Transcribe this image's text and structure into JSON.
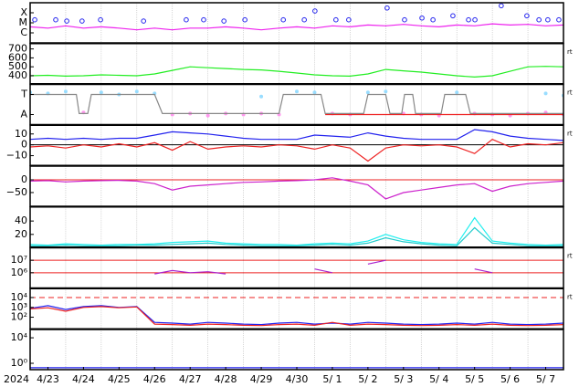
{
  "year_label": "2024",
  "x_axis": {
    "xlim": [
      0,
      15
    ],
    "x": [
      0,
      0.5,
      1,
      1.5,
      2,
      2.5,
      3,
      3.5,
      4,
      4.5,
      5,
      5.5,
      6,
      6.5,
      7,
      7.5,
      8,
      8.5,
      9,
      9.5,
      10,
      10.5,
      11,
      11.5,
      12,
      12.5,
      13,
      13.5,
      14,
      14.5,
      15
    ],
    "xticks": [
      {
        "value": 0.5,
        "label": "4/23"
      },
      {
        "value": 1.5,
        "label": "4/24"
      },
      {
        "value": 2.5,
        "label": "4/25"
      },
      {
        "value": 3.5,
        "label": "4/26"
      },
      {
        "value": 4.5,
        "label": "4/27"
      },
      {
        "value": 5.5,
        "label": "4/28"
      },
      {
        "value": 6.5,
        "label": "4/29"
      },
      {
        "value": 7.5,
        "label": "4/30"
      },
      {
        "value": 8.5,
        "label": "5/ 1"
      },
      {
        "value": 9.5,
        "label": "5/ 2"
      },
      {
        "value": 10.5,
        "label": "5/ 3"
      },
      {
        "value": 11.5,
        "label": "5/ 4"
      },
      {
        "value": 12.5,
        "label": "5/ 5"
      },
      {
        "value": 13.5,
        "label": "5/ 6"
      },
      {
        "value": 14.5,
        "label": "5/ 7"
      }
    ],
    "xgrid": [
      1,
      2,
      3,
      4,
      5,
      6,
      7,
      8,
      9,
      10,
      11,
      12,
      13,
      14
    ]
  },
  "chart_data": [
    {
      "type": "line",
      "log": true,
      "ylim": [
        1e-07,
        0.001
      ],
      "yticks": [
        {
          "value": 0.0001,
          "label": "X"
        },
        {
          "value": 1e-05,
          "label": "M"
        },
        {
          "value": 1e-06,
          "label": "C"
        }
      ],
      "series": [
        {
          "color": "#ee22ee",
          "values": [
            4e-06,
            3e-06,
            5e-06,
            3e-06,
            4e-06,
            3e-06,
            2e-06,
            3e-06,
            2e-06,
            3e-06,
            3e-06,
            4e-06,
            3e-06,
            2e-06,
            3e-06,
            4e-06,
            3e-06,
            5e-06,
            4e-06,
            6e-06,
            5e-06,
            7e-06,
            5e-06,
            4e-06,
            6e-06,
            5e-06,
            8e-06,
            6e-06,
            7e-06,
            5e-06,
            6e-06
          ]
        }
      ],
      "markers": {
        "color": "#2222ee",
        "x": [
          0.13,
          0.72,
          1.03,
          1.46,
          1.98,
          3.19,
          4.39,
          4.88,
          5.45,
          6.04,
          7.12,
          7.71,
          8.01,
          8.6,
          8.96,
          10.04,
          10.53,
          11.02,
          11.33,
          11.89,
          12.33,
          12.51,
          13.25,
          13.97,
          14.31,
          14.56,
          14.87
        ],
        "values": [
          2e-05,
          2e-05,
          1.5e-05,
          1.5e-05,
          2e-05,
          1.5e-05,
          2e-05,
          2e-05,
          1.5e-05,
          2e-05,
          2e-05,
          2e-05,
          0.00015,
          2e-05,
          2e-05,
          0.0003,
          2e-05,
          3e-05,
          2e-05,
          5e-05,
          2e-05,
          2e-05,
          0.0005,
          5e-05,
          2e-05,
          2e-05,
          2e-05
        ]
      }
    },
    {
      "type": "line",
      "ylim": [
        310,
        760
      ],
      "yticks": [
        400,
        500,
        600,
        700
      ],
      "right_label": "rt",
      "series": [
        {
          "color": "#22ee22",
          "values": [
            400,
            405,
            395,
            400,
            410,
            405,
            400,
            420,
            460,
            500,
            490,
            480,
            470,
            465,
            450,
            430,
            410,
            400,
            395,
            420,
            470,
            455,
            440,
            420,
            400,
            385,
            400,
            450,
            500,
            505,
            500
          ]
        }
      ]
    },
    {
      "type": "line",
      "ylim": [
        -2,
        2
      ],
      "yticks": [
        {
          "value": 1,
          "label": "T"
        },
        {
          "value": -1,
          "label": "A"
        }
      ],
      "right_label": "rt",
      "series": [
        {
          "color": "#99ddff",
          "style": "dots",
          "values": [
            1.2,
            1.1,
            1.3,
            null,
            1.2,
            1.0,
            1.3,
            1.1,
            null,
            null,
            null,
            null,
            null,
            0.8,
            null,
            1.3,
            1.2,
            null,
            null,
            1.2,
            1.3,
            null,
            null,
            null,
            1.2,
            null,
            null,
            null,
            null,
            1.1,
            0.9
          ]
        },
        {
          "color": "#ff99ee",
          "style": "dots",
          "values": [
            null,
            null,
            null,
            -0.8,
            null,
            null,
            null,
            null,
            -1.0,
            -0.9,
            -1.1,
            -0.9,
            -1.0,
            -0.9,
            -1.0,
            null,
            null,
            -0.9,
            -1.0,
            null,
            null,
            -0.9,
            -1.0,
            -1.1,
            null,
            -0.9,
            -1.0,
            -1.1,
            -0.9,
            -0.8,
            -1.0
          ]
        },
        {
          "color": "#ee2222",
          "x": [
            8.3,
            15
          ],
          "values": [
            -1,
            -1
          ]
        },
        {
          "color": "#888888",
          "x": [
            0,
            1.3,
            1.38,
            1.62,
            1.72,
            3.5,
            3.72,
            7.0,
            7.12,
            8.18,
            8.3,
            9.38,
            9.5,
            10.0,
            10.12,
            10.45,
            10.53,
            10.76,
            10.84,
            11.56,
            11.66,
            12.25,
            12.38,
            15
          ],
          "values": [
            1,
            1,
            -0.9,
            -0.9,
            1,
            1,
            -0.9,
            -0.9,
            1,
            1,
            -0.9,
            -0.9,
            1,
            1,
            -0.9,
            -0.9,
            1,
            1,
            -0.9,
            -0.9,
            1,
            1,
            -0.9,
            -0.9
          ]
        }
      ]
    },
    {
      "type": "line",
      "ylim": [
        -19,
        18
      ],
      "yticks": [
        10,
        0,
        {
          "value": -10,
          "label": "−10"
        }
      ],
      "right_label": "rt",
      "hlines": [
        {
          "value": 0,
          "color": "#000000"
        }
      ],
      "series": [
        {
          "color": "#2222ee",
          "values": [
            5,
            6,
            5,
            6,
            5,
            6,
            6,
            9,
            12,
            11,
            10,
            8,
            6,
            5,
            5,
            5,
            9,
            8,
            7,
            11,
            8,
            6,
            5,
            5,
            5,
            14,
            12,
            8,
            6,
            5,
            4
          ]
        },
        {
          "color": "#ee2222",
          "values": [
            -2,
            -1,
            -3,
            0,
            -2,
            1,
            -2,
            2,
            -5,
            3,
            -4,
            -2,
            -1,
            -2,
            0,
            -1,
            -4,
            0,
            -3,
            -15,
            -3,
            0,
            -1,
            0,
            -2,
            -8,
            5,
            -2,
            1,
            0,
            2
          ]
        }
      ]
    },
    {
      "type": "line",
      "ylim": [
        -104,
        54
      ],
      "yticks": [
        0,
        {
          "value": -50,
          "label": "−50"
        }
      ],
      "hlines": [
        {
          "value": 0,
          "color": "#ee2222"
        }
      ],
      "series": [
        {
          "color": "#cc22cc",
          "values": [
            -5,
            -3,
            -8,
            -5,
            -3,
            -2,
            -5,
            -15,
            -40,
            -25,
            -20,
            -15,
            -10,
            -8,
            -5,
            -3,
            0,
            8,
            -5,
            -20,
            -75,
            -50,
            -40,
            -30,
            -20,
            -15,
            -45,
            -25,
            -15,
            -10,
            -5
          ]
        }
      ]
    },
    {
      "type": "line",
      "ylim": [
        1,
        61
      ],
      "yticks": [
        20,
        40
      ],
      "series": [
        {
          "color": "#22eeee",
          "values": [
            5,
            4,
            6,
            5,
            4,
            5,
            5,
            6,
            8,
            9,
            10,
            7,
            6,
            5,
            5,
            4,
            6,
            7,
            6,
            10,
            20,
            12,
            8,
            6,
            5,
            45,
            10,
            7,
            5,
            4,
            5
          ]
        },
        {
          "color": "#22cccc",
          "values": [
            3,
            3,
            4,
            3,
            3,
            3,
            4,
            4,
            5,
            6,
            7,
            5,
            4,
            3,
            3,
            3,
            4,
            5,
            4,
            7,
            15,
            9,
            6,
            4,
            3,
            30,
            7,
            5,
            3,
            3,
            3
          ]
        }
      ]
    },
    {
      "type": "line",
      "log": true,
      "ylim": [
        60000,
        100000000
      ],
      "yticks": [
        {
          "value": 1000000,
          "label": "10⁶"
        },
        {
          "value": 10000000,
          "label": "10⁷"
        }
      ],
      "right_label": "rt",
      "hlines": [
        {
          "value": 10000000,
          "color": "#ee2222"
        },
        {
          "value": 1000000,
          "color": "#ee2222"
        }
      ],
      "series": [
        {
          "color": "#aa22cc",
          "values": [
            null,
            null,
            null,
            null,
            null,
            null,
            null,
            800000,
            1500000,
            1000000,
            1200000,
            800000,
            null,
            null,
            null,
            null,
            2000000,
            1000000,
            null,
            5000000,
            10000000,
            null,
            null,
            null,
            null,
            2000000,
            1000000,
            null,
            null,
            null,
            null
          ]
        }
      ]
    },
    {
      "type": "line",
      "log": true,
      "ylim": [
        6.6,
        80000
      ],
      "yticks": [
        {
          "value": 100,
          "label": "10²"
        },
        {
          "value": 1000,
          "label": "10³"
        },
        {
          "value": 10000,
          "label": "10⁴"
        }
      ],
      "right_label": "rt",
      "hlines": [
        {
          "value": 10000,
          "color": "#ee2222",
          "dash": true
        }
      ],
      "series": [
        {
          "color": "#2222ee",
          "values": [
            800,
            1500,
            600,
            1200,
            1500,
            1000,
            1200,
            30,
            25,
            20,
            30,
            25,
            20,
            18,
            25,
            30,
            20,
            25,
            20,
            30,
            25,
            20,
            18,
            20,
            25,
            20,
            30,
            20,
            18,
            20,
            25
          ]
        },
        {
          "color": "#ee2222",
          "values": [
            700,
            900,
            400,
            1000,
            1200,
            900,
            1100,
            20,
            18,
            15,
            20,
            18,
            15,
            14,
            18,
            20,
            15,
            30,
            15,
            20,
            18,
            15,
            14,
            15,
            18,
            15,
            20,
            15,
            14,
            15,
            18
          ]
        }
      ]
    },
    {
      "type": "line",
      "log": true,
      "ylim": [
        0.1,
        200000
      ],
      "yticks": [
        {
          "value": 1,
          "label": "10⁰"
        },
        {
          "value": 10000,
          "label": "10⁴"
        }
      ],
      "series": [
        {
          "color": "#2222ee",
          "values": [
            0.2,
            0.2,
            0.2,
            0.2,
            0.2,
            0.2,
            0.2,
            0.2,
            0.2,
            0.2,
            0.2,
            0.2,
            0.2,
            0.2,
            0.2,
            0.2,
            0.2,
            0.2,
            0.2,
            0.2,
            0.2,
            0.2,
            0.2,
            0.2,
            0.2,
            0.2,
            0.2,
            0.2,
            0.2,
            0.2,
            0.2
          ]
        }
      ]
    }
  ]
}
